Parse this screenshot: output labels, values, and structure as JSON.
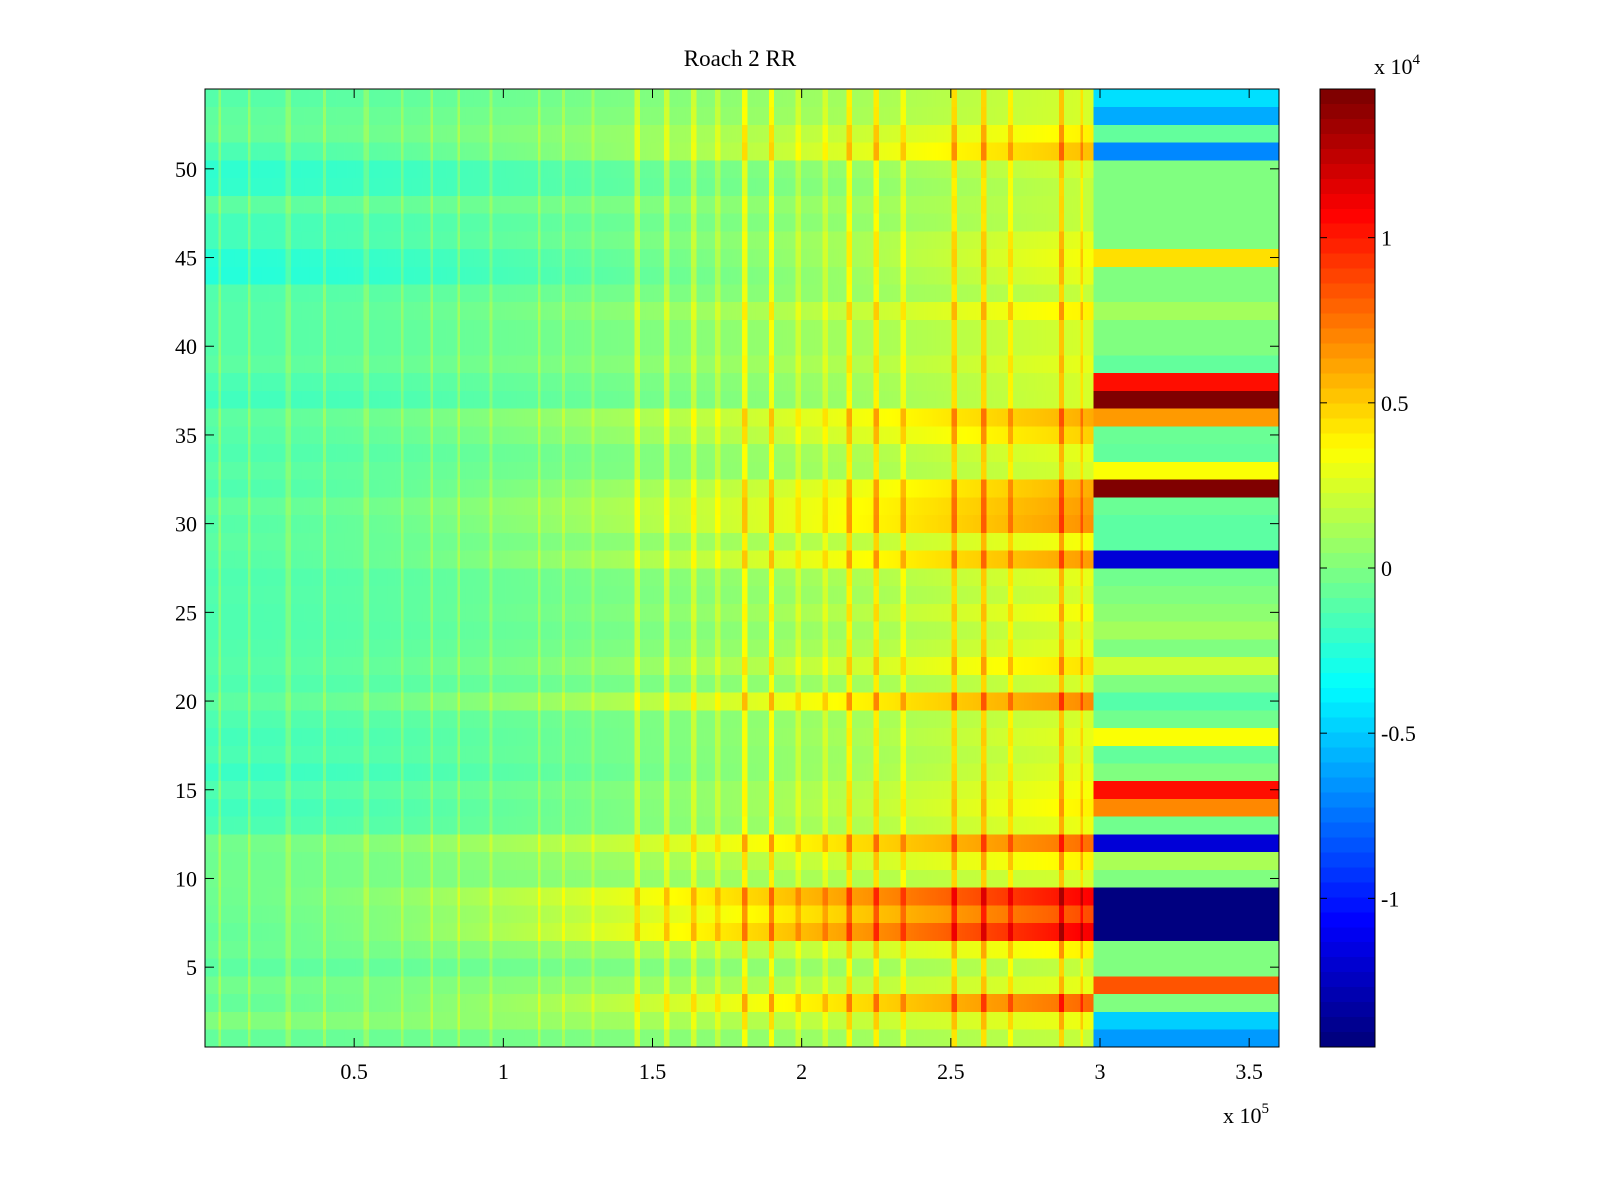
{
  "chart_data": {
    "type": "heatmap",
    "title": "Roach 2 RR",
    "x_multiplier_label": "x 10",
    "x_multiplier_exponent": "5",
    "colorbar_multiplier_label": "x 10",
    "colorbar_multiplier_exponent": "4",
    "xlim": [
      0,
      360000
    ],
    "ylim": [
      0.5,
      54.5
    ],
    "x_tick_values": [
      50000,
      100000,
      150000,
      200000,
      250000,
      300000,
      350000
    ],
    "x_tick_labels": [
      "0.5",
      "1",
      "1.5",
      "2",
      "2.5",
      "3",
      "3.5"
    ],
    "y_tick_values": [
      5,
      10,
      15,
      20,
      25,
      30,
      35,
      40,
      45,
      50
    ],
    "y_tick_labels": [
      "5",
      "10",
      "15",
      "20",
      "25",
      "30",
      "35",
      "40",
      "45",
      "50"
    ],
    "colormap": "jet",
    "clim": [
      -14500,
      14500
    ],
    "colorbar_tick_values": [
      -10000,
      -5000,
      0,
      5000,
      10000
    ],
    "colorbar_tick_labels": [
      "-1",
      "-0.5",
      "0",
      "0.5",
      "1"
    ],
    "rows": 54,
    "row_start_values": [
      -800,
      0,
      -800,
      -400,
      -1000,
      -600,
      -800,
      -600,
      -500,
      -400,
      -500,
      -400,
      -1500,
      -1800,
      -1400,
      -2000,
      -1500,
      -1700,
      -1400,
      -1000,
      -1400,
      -1200,
      -1300,
      -1400,
      -1400,
      -1300,
      -1400,
      -1200,
      -1000,
      -1200,
      -900,
      -1400,
      -1100,
      -1400,
      -1200,
      -1000,
      -1800,
      -1500,
      -1000,
      -1200,
      -1200,
      -1200,
      -1300,
      -2600,
      -2500,
      -1700,
      -1700,
      -1000,
      -2200,
      -2300,
      -1500,
      -800,
      -900,
      -1200
    ],
    "row_end_values": [
      2000,
      3200,
      8000,
      3000,
      2000,
      4000,
      11200,
      8800,
      11000,
      2500,
      4000,
      7800,
      3200,
      4000,
      3500,
      3000,
      2500,
      3000,
      2500,
      7000,
      2500,
      4500,
      3000,
      2500,
      3500,
      2500,
      3000,
      6500,
      3500,
      6800,
      6500,
      6000,
      2500,
      3000,
      5000,
      6000,
      2500,
      2500,
      3000,
      2500,
      2500,
      4000,
      2000,
      3000,
      3500,
      3000,
      2000,
      2000,
      2000,
      2500,
      5500,
      4000,
      2500,
      2500
    ],
    "transition_x": 298000,
    "region2_values": [
      -6500,
      -5000,
      0,
      8500,
      0,
      0,
      -14500,
      -14500,
      -14500,
      0,
      1200,
      -12000,
      -400,
      7000,
      10500,
      0,
      -800,
      3500,
      -400,
      -1200,
      0,
      2200,
      0,
      1000,
      400,
      0,
      -400,
      -12000,
      -1000,
      -1000,
      -600,
      14500,
      3500,
      -800,
      -600,
      6500,
      14500,
      10500,
      -800,
      0,
      0,
      1000,
      0,
      0,
      4500,
      0,
      0,
      0,
      0,
      0,
      -7000,
      -800,
      -6000,
      -4500
    ],
    "spike_x_values": [
      5000,
      15000,
      28000,
      40000,
      54000,
      66000,
      76000,
      85000,
      96000,
      112000,
      120000,
      130000,
      145000,
      155000,
      164000,
      172000,
      181000,
      190000,
      199000,
      208000,
      216000,
      225000,
      234000,
      251000,
      261000,
      270000,
      287000,
      294000
    ],
    "spike_strength": [
      1500,
      1500,
      1200,
      1500,
      1200,
      1300,
      1500,
      1500,
      1200,
      1500,
      1300,
      1200,
      2200,
      2000,
      2000,
      1500,
      3000,
      3000,
      1500,
      1500,
      3000,
      3000,
      2000,
      3000,
      3000,
      2000,
      3000,
      2000
    ]
  }
}
